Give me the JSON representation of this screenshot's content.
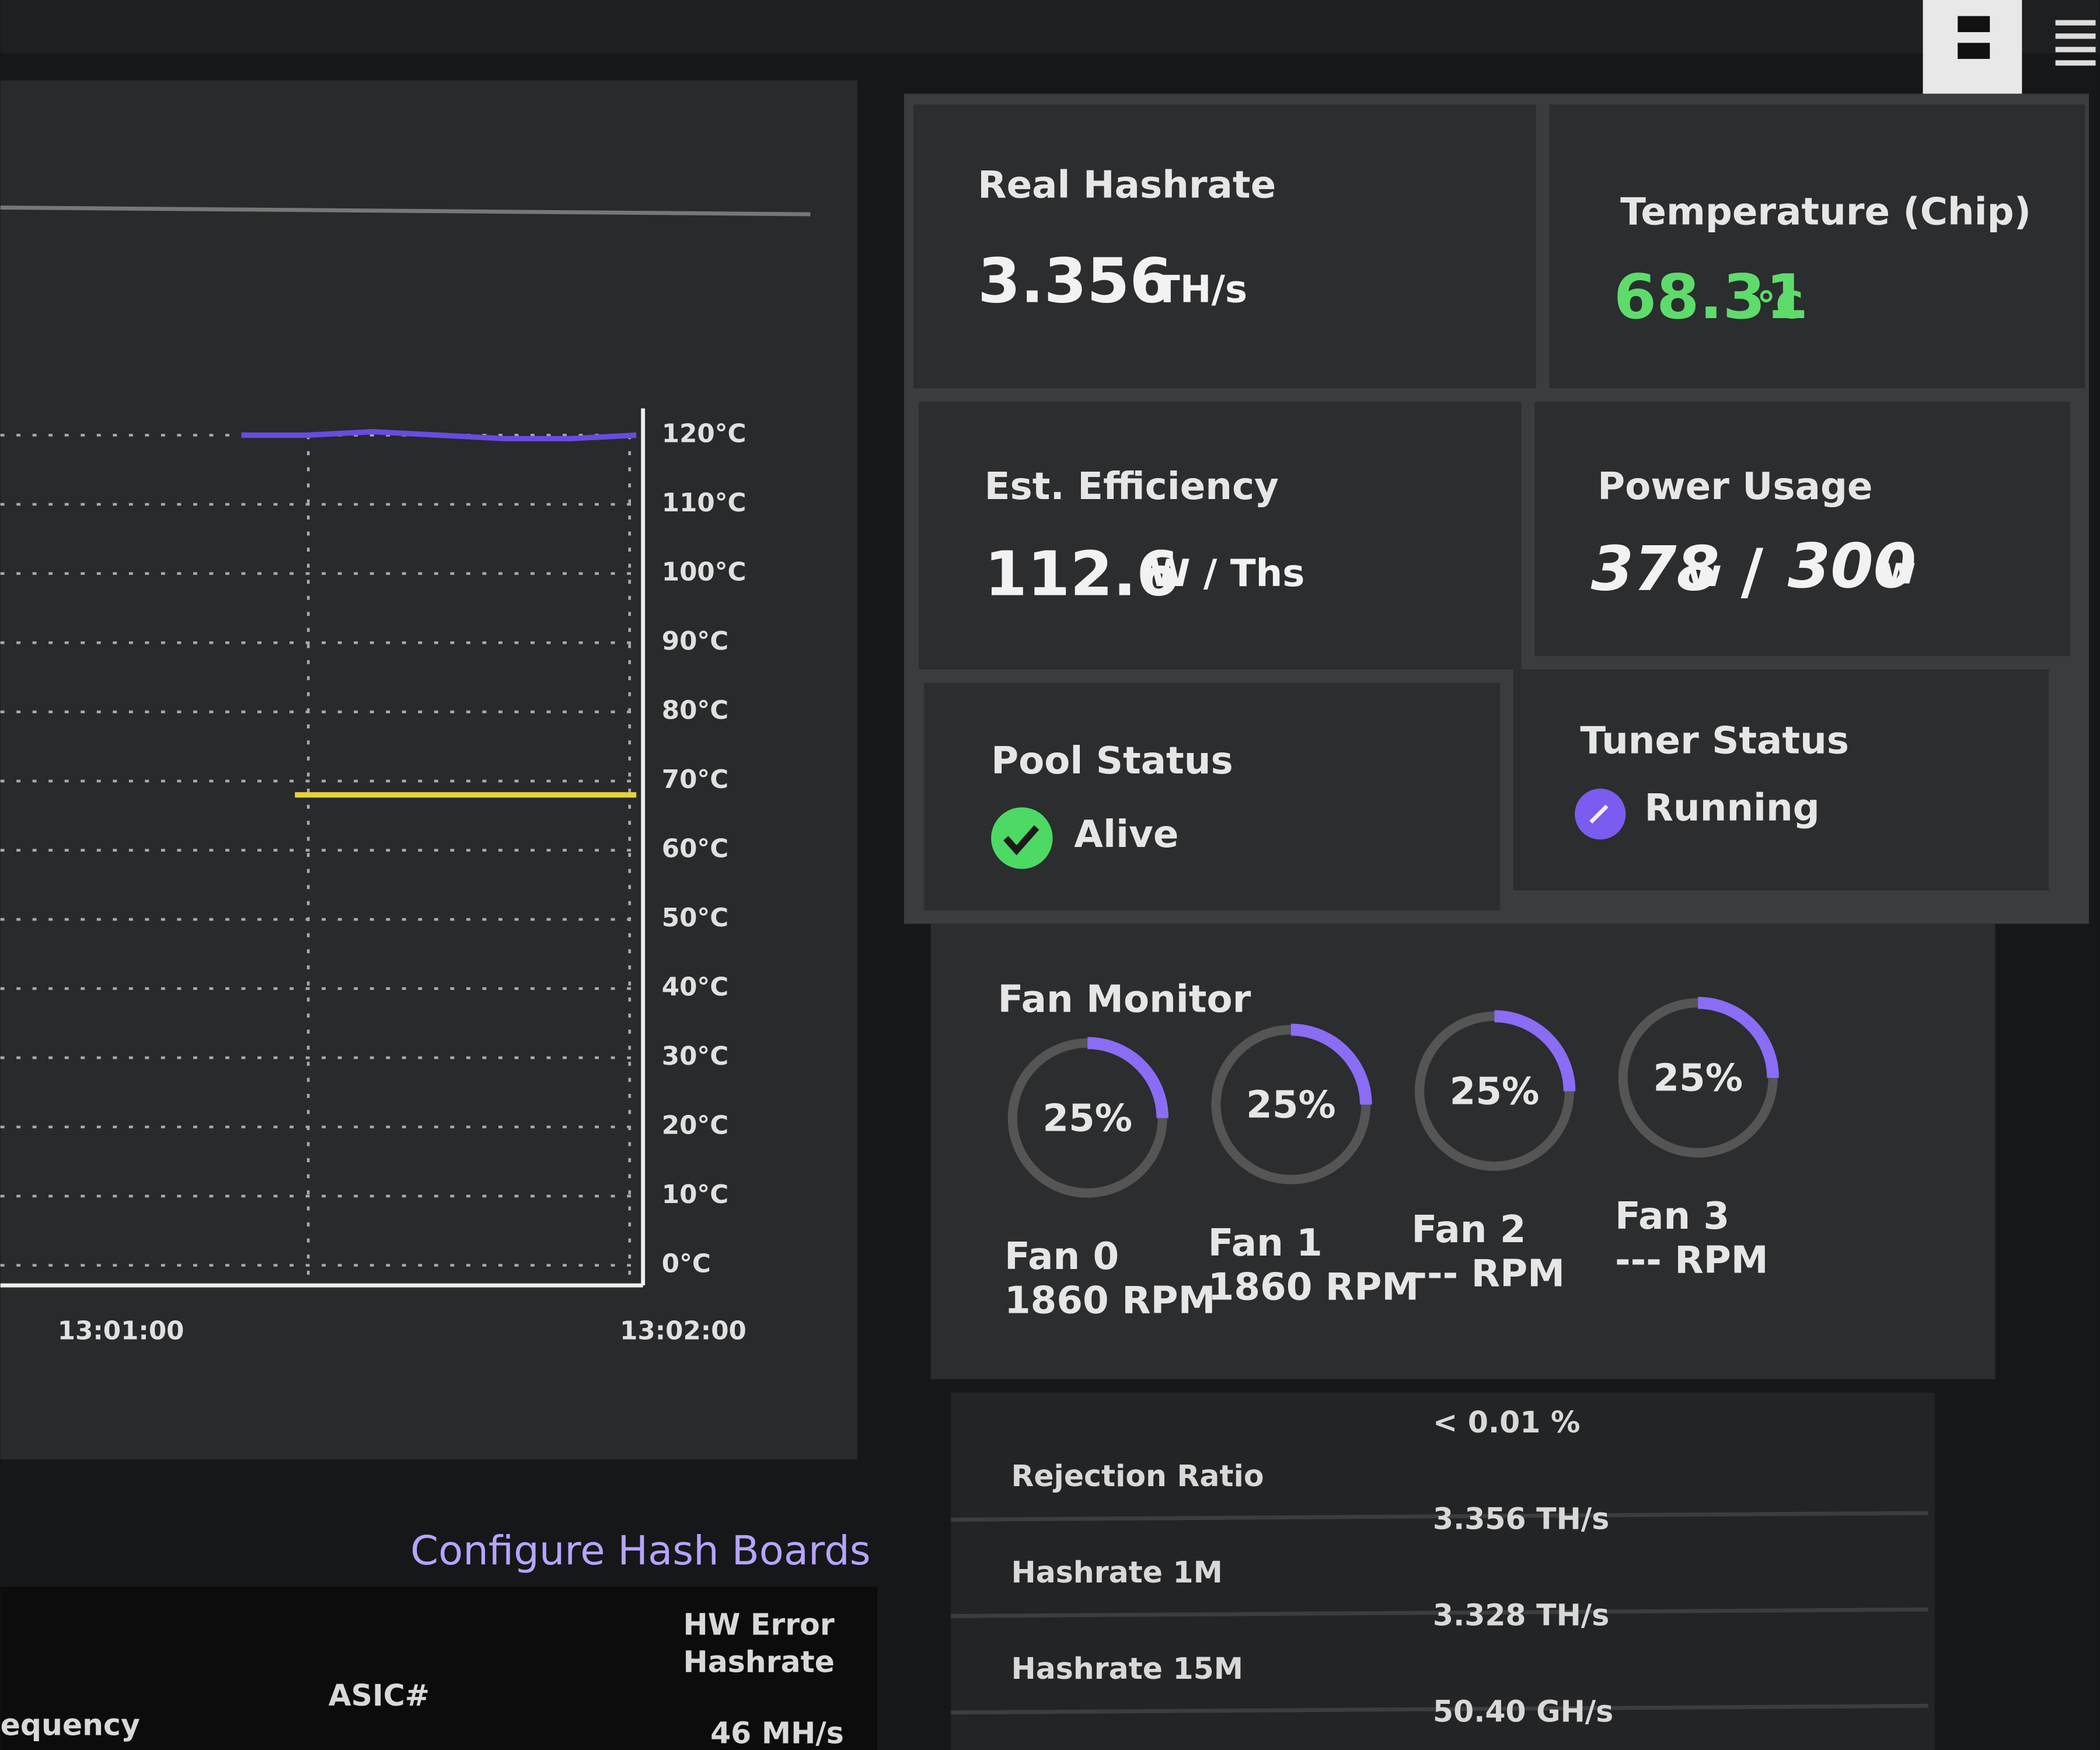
{
  "chart": {
    "type": "line",
    "ylim": [
      0,
      120
    ],
    "yticks": [
      {
        "value": 0,
        "label": "0°C"
      },
      {
        "value": 10,
        "label": "10°C"
      },
      {
        "value": 20,
        "label": "20°C"
      },
      {
        "value": 30,
        "label": "30°C"
      },
      {
        "value": 40,
        "label": "40°C"
      },
      {
        "value": 50,
        "label": "50°C"
      },
      {
        "value": 60,
        "label": "60°C"
      },
      {
        "value": 70,
        "label": "70°C"
      },
      {
        "value": 80,
        "label": "80°C"
      },
      {
        "value": 90,
        "label": "90°C"
      },
      {
        "value": 100,
        "label": "100°C"
      },
      {
        "value": 110,
        "label": "110°C"
      },
      {
        "value": 120,
        "label": "120°C"
      }
    ],
    "categories": [
      "13:01:00",
      "13:02:00"
    ],
    "grid": true,
    "series": [
      {
        "color": "#6a4be0",
        "values": [
          120,
          120,
          120.5,
          120,
          119.5,
          119.5,
          120
        ]
      },
      {
        "color": "#e8d23a",
        "values": [
          68,
          68,
          68,
          68,
          68
        ]
      }
    ]
  },
  "cards": [
    {
      "label": "Real Hashrate",
      "value": 3.356,
      "unit": "TH/s"
    },
    {
      "label": "Temperature (Chip)",
      "value": 68.31,
      "unit": "°C"
    },
    {
      "label": "Est. Efficiency",
      "value": 112.6,
      "unit": "W / Ths"
    },
    {
      "label": "Power Usage",
      "value": 378,
      "unit": "w",
      "separator": "/",
      "limit": 300,
      "limit_unit": "w"
    },
    {
      "label": "Pool Status",
      "status": "Alive"
    },
    {
      "label": "Tuner Status",
      "status": "Running"
    }
  ],
  "fan_monitor": {
    "title": "Fan Monitor",
    "fans": [
      {
        "name": "Fan 0",
        "percent": 25,
        "percent_label": "25%",
        "rpm": "1860 RPM"
      },
      {
        "name": "Fan 1",
        "percent": 25,
        "percent_label": "25%",
        "rpm": "1860 RPM"
      },
      {
        "name": "Fan 2",
        "percent": 25,
        "percent_label": "25%",
        "rpm": "--- RPM"
      },
      {
        "name": "Fan 3",
        "percent": 25,
        "percent_label": "25%",
        "rpm": "--- RPM"
      }
    ]
  },
  "stats_table": {
    "rows": [
      {
        "label": "Rejection Ratio",
        "value": "< 0.01 %"
      },
      {
        "label": "Hashrate 1M",
        "value": "3.356 TH/s"
      },
      {
        "label": "Hashrate 15M",
        "value": "3.328 TH/s"
      },
      {
        "value": "50.40 GH/s"
      }
    ]
  },
  "hash_boards": {
    "link": "Configure Hash Boards",
    "headers": [
      "equency",
      "ASIC#",
      "HW Error",
      "Hashrate"
    ],
    "cell": "46 MH/s"
  }
}
